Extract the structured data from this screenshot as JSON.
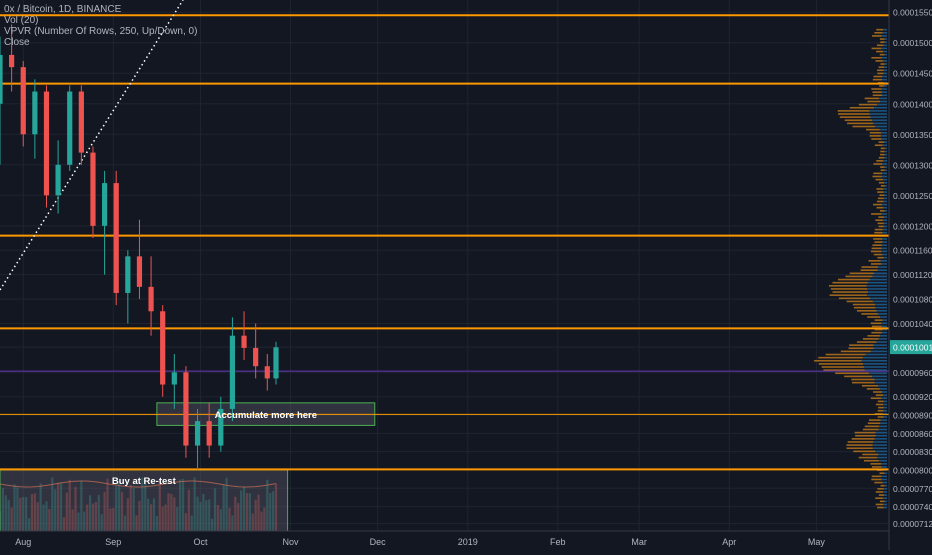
{
  "legend": {
    "title": "0x / Bitcoin, 1D, BINANCE",
    "vol": "Vol (20)",
    "vpvr": "VPVR (Number Of Rows, 250, Up/Down, 0)",
    "close": "Close"
  },
  "colors": {
    "background": "#131722",
    "grid": "#1f2430",
    "up": "#26a69a",
    "down": "#ef5350",
    "level_line": "#ff9800",
    "box_fill": "#5d606b",
    "box_border": "#4caf50",
    "price_tag": "#26a69a",
    "current_line": "#673ab7",
    "vpvr_up": "#1e5a8a",
    "vpvr_down": "#b8741a",
    "trend_line": "#ffffff",
    "axis_text": "#b2b5be"
  },
  "annotations": {
    "accumulate": "Accumulate more here",
    "buy_retest": "Buy at Re-test"
  },
  "chart_data": {
    "type": "candlestick",
    "title": "0x / Bitcoin, 1D, BINANCE",
    "ylim": [
      7e-05,
      0.000157
    ],
    "grid": true,
    "current_price": 0.00010013,
    "y_ticks": [
      "0.00015500",
      "0.00015000",
      "0.00014500",
      "0.00014000",
      "0.00013500",
      "0.00013000",
      "0.00012500",
      "0.00012000",
      "0.00011600",
      "0.00011200",
      "0.00010800",
      "0.00010400",
      "0.00010013",
      "0.00009600",
      "0.00009200",
      "0.00008900",
      "0.00008600",
      "0.00008300",
      "0.00008000",
      "0.00007700",
      "0.00007400",
      "0.00007120"
    ],
    "x_ticks": [
      {
        "label": "Aug",
        "date": "2018-08-01"
      },
      {
        "label": "Sep",
        "date": "2018-09-01"
      },
      {
        "label": "Oct",
        "date": "2018-10-01"
      },
      {
        "label": "Nov",
        "date": "2018-11-01"
      },
      {
        "label": "Dec",
        "date": "2018-12-01"
      },
      {
        "label": "2019",
        "date": "2019-01-01"
      },
      {
        "label": "Feb",
        "date": "2019-02-01"
      },
      {
        "label": "Mar",
        "date": "2019-03-01"
      },
      {
        "label": "Apr",
        "date": "2019-04-01"
      },
      {
        "label": "May",
        "date": "2019-05-01"
      }
    ],
    "horizontal_levels": [
      0.0001545,
      0.0001433,
      0.0001184,
      0.0001032,
      8.91e-05,
      8.01e-05
    ],
    "vpvr_poc": 9.62e-05,
    "zones": [
      {
        "label": "Accumulate more here",
        "start": "2018-09-16",
        "end": "2018-11-30",
        "top": 9.1e-05,
        "bottom": 8.73e-05
      },
      {
        "label": "Buy at Re-test",
        "start": "2018-07-24",
        "end": "2018-10-31",
        "top": 8e-05,
        "bottom": 7.1e-05
      }
    ],
    "trend_line": [
      {
        "date": "2018-07-24",
        "price": 0.0001095
      },
      {
        "date": "2018-09-25",
        "price": 0.000157
      }
    ],
    "series": [
      {
        "date": "2018-07-24",
        "open": 0.00014,
        "high": 0.000151,
        "low": 0.00013,
        "close": 0.000148
      },
      {
        "date": "2018-07-28",
        "open": 0.000148,
        "high": 0.000153,
        "low": 0.000142,
        "close": 0.000146
      },
      {
        "date": "2018-08-01",
        "open": 0.000146,
        "high": 0.000147,
        "low": 0.000133,
        "close": 0.000135
      },
      {
        "date": "2018-08-05",
        "open": 0.000135,
        "high": 0.000144,
        "low": 0.000131,
        "close": 0.000142
      },
      {
        "date": "2018-08-09",
        "open": 0.000142,
        "high": 0.000143,
        "low": 0.000123,
        "close": 0.000125
      },
      {
        "date": "2018-08-13",
        "open": 0.000125,
        "high": 0.000134,
        "low": 0.000122,
        "close": 0.00013
      },
      {
        "date": "2018-08-17",
        "open": 0.00013,
        "high": 0.000143,
        "low": 0.000129,
        "close": 0.000142
      },
      {
        "date": "2018-08-21",
        "open": 0.000142,
        "high": 0.000143,
        "low": 0.00013,
        "close": 0.000132
      },
      {
        "date": "2018-08-25",
        "open": 0.000132,
        "high": 0.000133,
        "low": 0.000118,
        "close": 0.00012
      },
      {
        "date": "2018-08-29",
        "open": 0.00012,
        "high": 0.000129,
        "low": 0.000112,
        "close": 0.000127
      },
      {
        "date": "2018-09-02",
        "open": 0.000127,
        "high": 0.000129,
        "low": 0.000107,
        "close": 0.000109
      },
      {
        "date": "2018-09-06",
        "open": 0.000109,
        "high": 0.000116,
        "low": 0.000104,
        "close": 0.000115
      },
      {
        "date": "2018-09-10",
        "open": 0.000115,
        "high": 0.000121,
        "low": 0.000108,
        "close": 0.00011
      },
      {
        "date": "2018-09-14",
        "open": 0.00011,
        "high": 0.000115,
        "low": 0.000102,
        "close": 0.000106
      },
      {
        "date": "2018-09-18",
        "open": 0.000106,
        "high": 0.000107,
        "low": 9.2e-05,
        "close": 9.4e-05
      },
      {
        "date": "2018-09-22",
        "open": 9.4e-05,
        "high": 9.9e-05,
        "low": 9e-05,
        "close": 9.6e-05
      },
      {
        "date": "2018-09-26",
        "open": 9.6e-05,
        "high": 9.7e-05,
        "low": 8.2e-05,
        "close": 8.4e-05
      },
      {
        "date": "2018-09-30",
        "open": 8.4e-05,
        "high": 9e-05,
        "low": 8e-05,
        "close": 8.8e-05
      },
      {
        "date": "2018-10-04",
        "open": 8.8e-05,
        "high": 9.1e-05,
        "low": 8.2e-05,
        "close": 8.4e-05
      },
      {
        "date": "2018-10-08",
        "open": 8.4e-05,
        "high": 9.2e-05,
        "low": 8.3e-05,
        "close": 9e-05
      },
      {
        "date": "2018-10-12",
        "open": 9e-05,
        "high": 0.000105,
        "low": 8.8e-05,
        "close": 0.000102
      },
      {
        "date": "2018-10-16",
        "open": 0.000102,
        "high": 0.000106,
        "low": 9.8e-05,
        "close": 0.0001
      },
      {
        "date": "2018-10-20",
        "open": 0.0001,
        "high": 0.000104,
        "low": 9.5e-05,
        "close": 9.7e-05
      },
      {
        "date": "2018-10-24",
        "open": 9.7e-05,
        "high": 9.9e-05,
        "low": 9.3e-05,
        "close": 9.5e-05
      },
      {
        "date": "2018-10-27",
        "open": 9.5e-05,
        "high": 0.000101,
        "low": 9.4e-05,
        "close": 0.0001001
      }
    ]
  }
}
